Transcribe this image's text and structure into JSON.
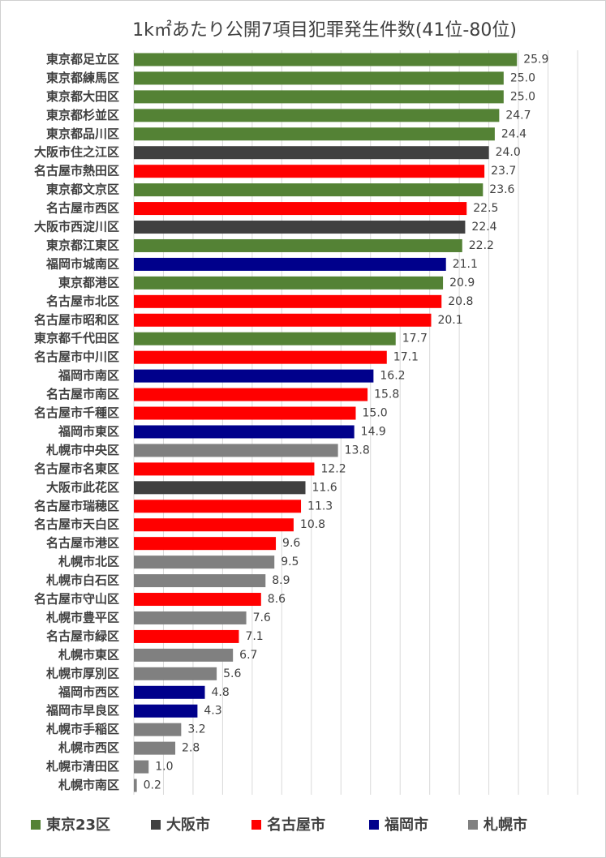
{
  "chart_data": {
    "type": "bar",
    "orientation": "horizontal",
    "title": "1k㎡あたり公開7項目犯罪発生件数(41位-80位)",
    "categories": [
      "東京都足立区",
      "東京都練馬区",
      "東京都大田区",
      "東京都杉並区",
      "東京都品川区",
      "大阪市住之江区",
      "名古屋市熱田区",
      "東京都文京区",
      "名古屋市西区",
      "大阪市西淀川区",
      "東京都江東区",
      "福岡市城南区",
      "東京都港区",
      "名古屋市北区",
      "名古屋市昭和区",
      "東京都千代田区",
      "名古屋市中川区",
      "福岡市南区",
      "名古屋市南区",
      "名古屋市千種区",
      "福岡市東区",
      "札幌市中央区",
      "名古屋市名東区",
      "大阪市此花区",
      "名古屋市瑞穂区",
      "名古屋市天白区",
      "名古屋市港区",
      "札幌市北区",
      "札幌市白石区",
      "名古屋市守山区",
      "札幌市豊平区",
      "名古屋市緑区",
      "札幌市東区",
      "札幌市厚別区",
      "福岡市西区",
      "福岡市早良区",
      "札幌市手稲区",
      "札幌市西区",
      "札幌市清田区",
      "札幌市南区"
    ],
    "values": [
      25.9,
      25.0,
      25.0,
      24.7,
      24.4,
      24.0,
      23.7,
      23.6,
      22.5,
      22.4,
      22.2,
      21.1,
      20.9,
      20.8,
      20.1,
      17.7,
      17.1,
      16.2,
      15.8,
      15.0,
      14.9,
      13.8,
      12.2,
      11.6,
      11.3,
      10.8,
      9.6,
      9.5,
      8.9,
      8.6,
      7.6,
      7.1,
      6.7,
      5.6,
      4.8,
      4.3,
      3.2,
      2.8,
      1.0,
      0.2
    ],
    "value_labels": [
      "25.9",
      "25.0",
      "25.0",
      "24.7",
      "24.4",
      "24.0",
      "23.7",
      "23.6",
      "22.5",
      "22.4",
      "22.2",
      "21.1",
      "20.9",
      "20.8",
      "20.1",
      "17.7",
      "17.1",
      "16.2",
      "15.8",
      "15.0",
      "14.9",
      "13.8",
      "12.2",
      "11.6",
      "11.3",
      "10.8",
      "9.6",
      "9.5",
      "8.9",
      "8.6",
      "7.6",
      "7.1",
      "6.7",
      "5.6",
      "4.8",
      "4.3",
      "3.2",
      "2.8",
      "1.0",
      "0.2"
    ],
    "colors": [
      "#548235",
      "#548235",
      "#548235",
      "#548235",
      "#548235",
      "#404040",
      "#ff0000",
      "#548235",
      "#ff0000",
      "#404040",
      "#548235",
      "#00008b",
      "#548235",
      "#ff0000",
      "#ff0000",
      "#548235",
      "#ff0000",
      "#00008b",
      "#ff0000",
      "#ff0000",
      "#00008b",
      "#808080",
      "#ff0000",
      "#404040",
      "#ff0000",
      "#ff0000",
      "#ff0000",
      "#808080",
      "#808080",
      "#ff0000",
      "#808080",
      "#ff0000",
      "#808080",
      "#808080",
      "#00008b",
      "#00008b",
      "#808080",
      "#808080",
      "#808080",
      "#808080"
    ],
    "legend": [
      {
        "name": "東京23区",
        "color": "#548235"
      },
      {
        "name": "大阪市",
        "color": "#404040"
      },
      {
        "name": "名古屋市",
        "color": "#ff0000"
      },
      {
        "name": "福岡市",
        "color": "#00008b"
      },
      {
        "name": "札幌市",
        "color": "#808080"
      }
    ],
    "xlim": [
      0,
      30
    ],
    "xticks": [
      0,
      2,
      4,
      6,
      8,
      10,
      12,
      14,
      16,
      18,
      20,
      22,
      24,
      26,
      28,
      30
    ],
    "grid": true
  }
}
